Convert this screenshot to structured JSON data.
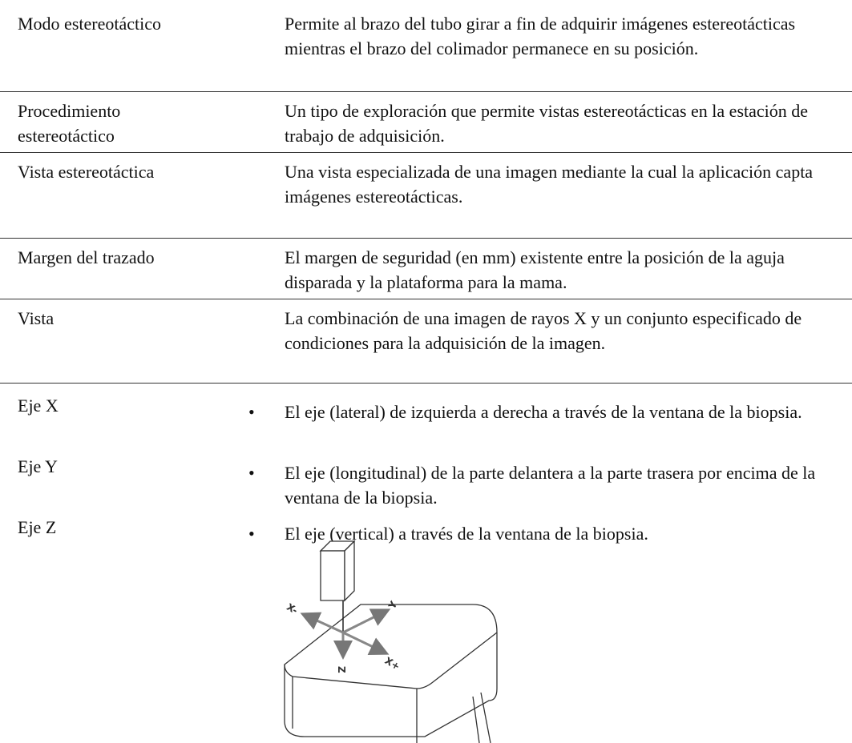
{
  "glossary": {
    "rows": [
      {
        "term": "Modo estereotáctico",
        "definition": "Permite al brazo del tubo girar a fin de adquirir imágenes estereotácticas mientras el brazo del colimador permanece en su posición."
      },
      {
        "term": "Procedimiento estereotáctico",
        "definition": "Un tipo de exploración que permite vistas estereotácticas en la estación de trabajo de adquisición."
      },
      {
        "term": "Vista estereotáctica",
        "definition": "Una vista especializada de una imagen mediante la cual la aplicación capta imágenes estereotácticas."
      },
      {
        "term": "Margen del trazado",
        "definition": "El margen de seguridad (en mm) existente entre la posición de la aguja disparada y la plataforma para la mama."
      },
      {
        "term": "Vista",
        "definition": "La combinación de una imagen de rayos X y un conjunto especificado de condiciones para la adquisición de la imagen."
      }
    ],
    "axes": [
      {
        "term": "Eje X",
        "definition": "El eje (lateral) de izquierda a derecha a través de la ventana de la biopsia."
      },
      {
        "term": "Eje Y",
        "definition": "El eje (longitudinal) de la parte delantera a la parte trasera por encima de la ventana de la biopsia."
      },
      {
        "term": "Eje Z",
        "definition": "El eje (vertical) a través de la ventana de la biopsia."
      }
    ]
  },
  "figure": {
    "labels": [
      "X-",
      "Y",
      "X+",
      "Z"
    ]
  }
}
